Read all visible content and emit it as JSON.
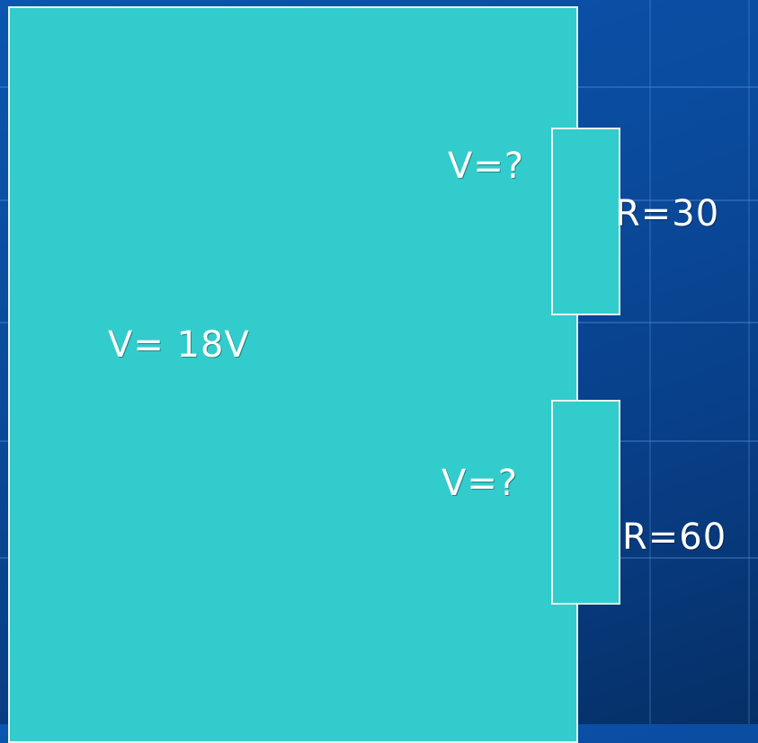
{
  "diagram": {
    "source_label": "V= 18V",
    "resistors": [
      {
        "voltage_label": "V=?",
        "resistance_label": "R=30"
      },
      {
        "voltage_label": "V=?",
        "resistance_label": "R=60"
      }
    ],
    "colors": {
      "background": "#0a4a9c",
      "panel_fill": "#33cccc",
      "outline": "#e8f4f4",
      "text": "#ffffff"
    }
  }
}
